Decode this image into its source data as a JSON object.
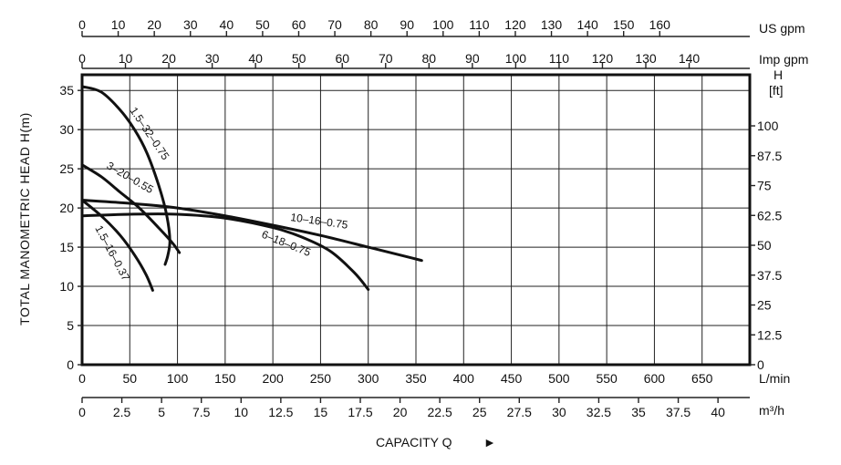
{
  "chart_data": {
    "type": "line",
    "title": "",
    "xlabel": "CAPACITY Q",
    "xlabel_arrow": "►",
    "ylabel": "TOTAL MANOMETRIC HEAD  H(m)",
    "xlim": [
      0,
      700
    ],
    "ylim": [
      0,
      37
    ],
    "grid": true,
    "x_unit": "L/min",
    "x_ticks": [
      0,
      50,
      100,
      150,
      200,
      250,
      300,
      350,
      400,
      450,
      500,
      550,
      600,
      650
    ],
    "y_ticks": [
      0,
      5,
      10,
      15,
      20,
      25,
      30,
      35
    ],
    "secondary_axes": {
      "us_gpm": {
        "unit": "US gpm",
        "factor": 3.785,
        "ticks": [
          0,
          10,
          20,
          30,
          40,
          50,
          60,
          70,
          80,
          90,
          100,
          110,
          120,
          130,
          140,
          150,
          160
        ]
      },
      "imp_gpm": {
        "unit": "Imp gpm",
        "factor": 4.546,
        "ticks": [
          0,
          10,
          20,
          30,
          40,
          50,
          60,
          70,
          80,
          90,
          100,
          110,
          120,
          130,
          140
        ]
      },
      "m3h": {
        "unit": "m³/h",
        "factor": 16.6667,
        "ticks": [
          "0",
          "2.5",
          "5",
          "7.5",
          "10",
          "12.5",
          "15",
          "17.5",
          "20",
          "22.5",
          "25",
          "27.5",
          "30",
          "32.5",
          "35",
          "37.5",
          "40"
        ]
      },
      "ft": {
        "unit": "H",
        "unit2": "[ft]",
        "factor": 0.3048,
        "ticks": [
          "0",
          "12.5",
          "25",
          "37.5",
          "50",
          "62.5",
          "75",
          "87.5",
          "100"
        ]
      }
    },
    "series": [
      {
        "name": "1.5–32–0.75",
        "x": [
          0,
          20,
          40,
          55,
          68,
          80,
          88,
          92,
          90,
          87
        ],
        "y": [
          35.5,
          34.8,
          32.5,
          30.0,
          27.0,
          23.0,
          19.5,
          16.0,
          14.0,
          12.8
        ]
      },
      {
        "name": "3–20–0.55",
        "x": [
          0,
          20,
          40,
          60,
          80,
          95,
          102
        ],
        "y": [
          25.5,
          24.0,
          22.0,
          20.0,
          17.5,
          15.5,
          14.3
        ]
      },
      {
        "name": "1.5–16–0.37",
        "x": [
          0,
          20,
          40,
          55,
          67,
          74
        ],
        "y": [
          21.0,
          19.0,
          16.5,
          14.0,
          11.5,
          9.5
        ]
      },
      {
        "name": "10–16–0.75",
        "x": [
          0,
          50,
          100,
          150,
          200,
          250,
          300,
          340,
          356
        ],
        "y": [
          21.0,
          20.6,
          20.0,
          19.0,
          17.8,
          16.5,
          15.0,
          13.8,
          13.3
        ]
      },
      {
        "name": "6–18–0.75",
        "x": [
          0,
          50,
          100,
          150,
          200,
          230,
          260,
          285,
          300
        ],
        "y": [
          19.0,
          19.2,
          19.2,
          18.7,
          17.5,
          16.3,
          14.5,
          11.8,
          9.6
        ]
      }
    ]
  }
}
